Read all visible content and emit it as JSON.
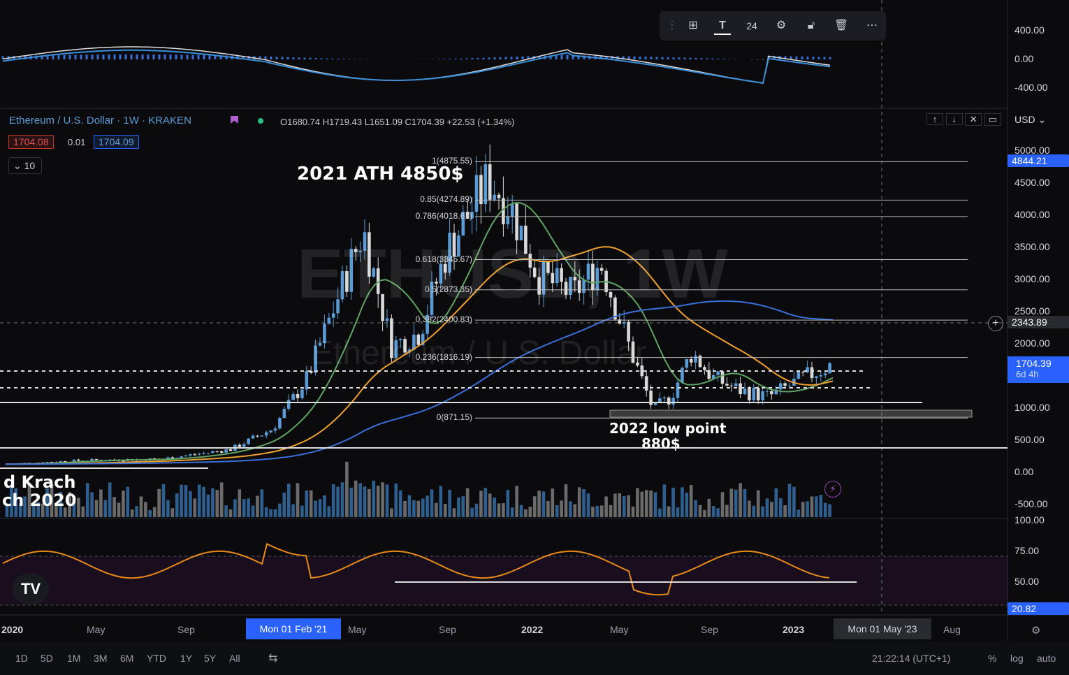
{
  "toolbar": {
    "font_size": "24",
    "icons": [
      "drag-handle-icon",
      "group-icon",
      "text-icon",
      "settings-icon",
      "lock-icon",
      "trash-icon",
      "more-icon"
    ]
  },
  "header": {
    "symbol": "Ethereum / U.S. Dollar · 1W · KRAKEN",
    "ohlc": "O1680.74 H1719.43 L1651.09 C1704.39 +22.53 (+1.34%)",
    "bid": "1704.08",
    "spread": "0.01",
    "ask": "1704.09",
    "indicators_count": "10",
    "currency": "USD"
  },
  "watermark": {
    "line1": "ETHUSD, 1W",
    "line2": "Ethereum / U.S. Dollar"
  },
  "annotations": {
    "ath": "2021 ATH 4850$",
    "low_line1": "2022 low point",
    "low_line2": "880$",
    "crash_line1": "d Krach",
    "crash_line2": "ch 2020"
  },
  "fibonacci": [
    {
      "label": "1(4875.55)",
      "price": 4875.55
    },
    {
      "label": "0.85(4274.89)",
      "price": 4274.89
    },
    {
      "label": "0.786(4018.61)",
      "price": 4018.61
    },
    {
      "label": "0.618(3345.67)",
      "price": 3345.67
    },
    {
      "label": "0.5(2873.35)",
      "price": 2873.35
    },
    {
      "label": "0.382(2400.83)",
      "price": 2400.83
    },
    {
      "label": "0.236(1816.19)",
      "price": 1816.19
    },
    {
      "label": "0(871.15)",
      "price": 871.15
    }
  ],
  "price_axis": {
    "macd_labels": [
      "400.00",
      "0.00",
      "-400.00"
    ],
    "main_labels": [
      "5000.00",
      "4500.00",
      "4000.00",
      "3500.00",
      "3000.00",
      "2500.00",
      "2000.00",
      "1500.00",
      "1000.00",
      "500.00",
      "0.00",
      "-500.00"
    ],
    "rsi_labels": [
      "100.00",
      "75.00",
      "50.00"
    ],
    "ath_tag": "4844.21",
    "crosshair_tag": "2343.89",
    "last_price": "1704.39",
    "countdown": "6d 4h",
    "rsi_value": "20.82"
  },
  "time_axis": {
    "labels": [
      "2020",
      "May",
      "Sep",
      "May",
      "Sep",
      "2022",
      "May",
      "Sep",
      "2023",
      "Aug"
    ],
    "bold": [
      "2020",
      "2022",
      "2023"
    ],
    "cursor_left": "Mon 01 Feb '21",
    "cursor_right": "Mon 01 May '23"
  },
  "ranges": [
    "1D",
    "5D",
    "1M",
    "3M",
    "6M",
    "YTD",
    "1Y",
    "5Y",
    "All"
  ],
  "footer": {
    "time": "21:22:14 (UTC+1)",
    "percent": "%",
    "log": "log",
    "auto": "auto"
  },
  "colors": {
    "bg": "#0b0b0d",
    "up": "#5b9bd5",
    "down": "#d9d9d9",
    "ma_green": "#5fa463",
    "ma_orange": "#f0a030",
    "ma_blue": "#3b6fd8",
    "rsi": "#e88a1a",
    "accent": "#2962ff"
  }
}
